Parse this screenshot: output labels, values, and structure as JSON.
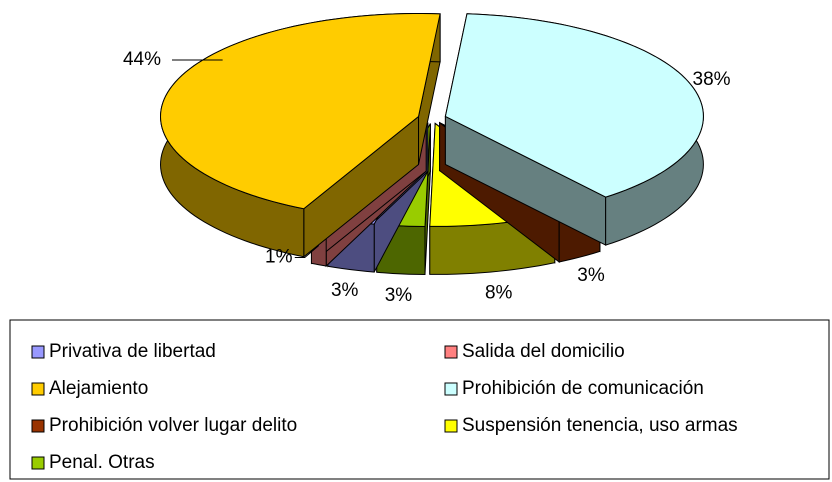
{
  "chart_data": {
    "type": "pie3d",
    "categories": [
      "Privativa de libertad",
      "Salida del domicilio",
      "Alejamiento",
      "Prohibición de comunicación",
      "Prohibición volver lugar delito",
      "Suspensión tenencia, uso armas",
      "Penal. Otras"
    ],
    "values": [
      3,
      1,
      44,
      38,
      3,
      8,
      3
    ],
    "value_labels": [
      "3%",
      "1%",
      "44%",
      "38%",
      "3%",
      "8%",
      "3%"
    ],
    "colors": [
      "#9999ff",
      "#ff8080",
      "#ffcc00",
      "#ccffff",
      "#993300",
      "#ffff00",
      "#99cc00"
    ],
    "legend": "bottom"
  }
}
